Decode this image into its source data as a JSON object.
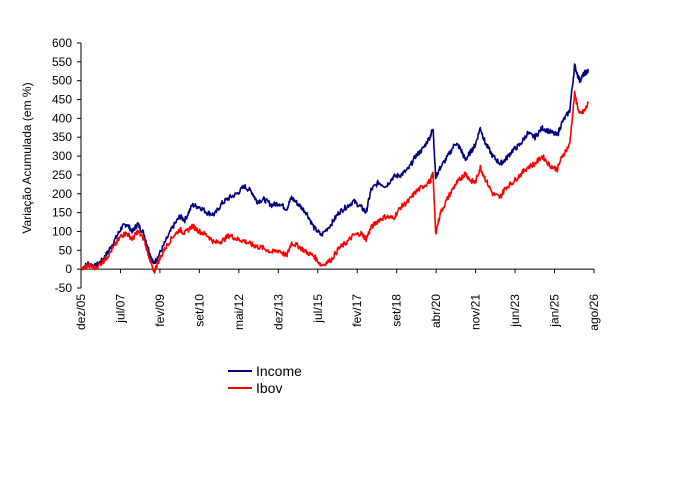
{
  "chart_data": {
    "type": "line",
    "title": "",
    "xlabel": "",
    "ylabel": "Variação Acumulada (em %)",
    "ylim": [
      -50,
      600
    ],
    "yticks": [
      -50,
      0,
      50,
      100,
      150,
      200,
      250,
      300,
      350,
      400,
      450,
      500,
      550,
      600
    ],
    "xlim": [
      2005.92,
      2026.58
    ],
    "xtick_labels": [
      "dez/05",
      "jul/07",
      "fev/09",
      "set/10",
      "mai/12",
      "dez/13",
      "jul/15",
      "fev/17",
      "set/18",
      "abr/20",
      "nov/21",
      "jun/23",
      "jan/25",
      "ago/26"
    ],
    "grid": false,
    "legend_position": "bottom-center",
    "series": [
      {
        "name": "Income",
        "color": "#00007f",
        "points": [
          [
            2005.92,
            0
          ],
          [
            2006.2,
            15
          ],
          [
            2006.5,
            8
          ],
          [
            2006.8,
            25
          ],
          [
            2007.0,
            45
          ],
          [
            2007.3,
            80
          ],
          [
            2007.55,
            110
          ],
          [
            2007.75,
            120
          ],
          [
            2008.0,
            100
          ],
          [
            2008.2,
            120
          ],
          [
            2008.45,
            95
          ],
          [
            2008.7,
            40
          ],
          [
            2008.85,
            15
          ],
          [
            2009.0,
            30
          ],
          [
            2009.3,
            70
          ],
          [
            2009.6,
            110
          ],
          [
            2009.9,
            140
          ],
          [
            2010.1,
            130
          ],
          [
            2010.4,
            170
          ],
          [
            2010.7,
            165
          ],
          [
            2011.0,
            150
          ],
          [
            2011.3,
            145
          ],
          [
            2011.6,
            175
          ],
          [
            2011.9,
            190
          ],
          [
            2012.2,
            200
          ],
          [
            2012.5,
            220
          ],
          [
            2012.8,
            205
          ],
          [
            2013.0,
            180
          ],
          [
            2013.3,
            185
          ],
          [
            2013.6,
            170
          ],
          [
            2013.9,
            175
          ],
          [
            2014.2,
            160
          ],
          [
            2014.4,
            190
          ],
          [
            2014.7,
            170
          ],
          [
            2015.0,
            150
          ],
          [
            2015.3,
            110
          ],
          [
            2015.6,
            90
          ],
          [
            2016.0,
            120
          ],
          [
            2016.3,
            150
          ],
          [
            2016.6,
            165
          ],
          [
            2016.9,
            180
          ],
          [
            2017.2,
            165
          ],
          [
            2017.4,
            150
          ],
          [
            2017.6,
            210
          ],
          [
            2017.9,
            230
          ],
          [
            2018.2,
            220
          ],
          [
            2018.5,
            245
          ],
          [
            2018.8,
            250
          ],
          [
            2019.1,
            265
          ],
          [
            2019.4,
            300
          ],
          [
            2019.7,
            320
          ],
          [
            2020.0,
            355
          ],
          [
            2020.1,
            375
          ],
          [
            2020.2,
            245
          ],
          [
            2020.4,
            270
          ],
          [
            2020.7,
            300
          ],
          [
            2021.0,
            335
          ],
          [
            2021.2,
            320
          ],
          [
            2021.4,
            290
          ],
          [
            2021.6,
            310
          ],
          [
            2021.8,
            330
          ],
          [
            2022.0,
            375
          ],
          [
            2022.2,
            335
          ],
          [
            2022.5,
            300
          ],
          [
            2022.8,
            280
          ],
          [
            2023.0,
            290
          ],
          [
            2023.3,
            315
          ],
          [
            2023.6,
            330
          ],
          [
            2023.9,
            360
          ],
          [
            2024.2,
            350
          ],
          [
            2024.5,
            375
          ],
          [
            2024.8,
            365
          ],
          [
            2025.1,
            355
          ],
          [
            2025.3,
            390
          ],
          [
            2025.6,
            420
          ],
          [
            2025.8,
            540
          ],
          [
            2026.0,
            500
          ],
          [
            2026.2,
            520
          ],
          [
            2026.35,
            525
          ]
        ]
      },
      {
        "name": "Ibov",
        "color": "#ff0000",
        "points": [
          [
            2005.92,
            0
          ],
          [
            2006.2,
            10
          ],
          [
            2006.5,
            3
          ],
          [
            2006.8,
            20
          ],
          [
            2007.0,
            35
          ],
          [
            2007.3,
            65
          ],
          [
            2007.55,
            90
          ],
          [
            2007.75,
            95
          ],
          [
            2008.0,
            80
          ],
          [
            2008.2,
            100
          ],
          [
            2008.45,
            80
          ],
          [
            2008.7,
            25
          ],
          [
            2008.85,
            -10
          ],
          [
            2009.0,
            15
          ],
          [
            2009.3,
            55
          ],
          [
            2009.6,
            85
          ],
          [
            2009.9,
            105
          ],
          [
            2010.1,
            95
          ],
          [
            2010.4,
            115
          ],
          [
            2010.7,
            100
          ],
          [
            2011.0,
            90
          ],
          [
            2011.3,
            70
          ],
          [
            2011.6,
            75
          ],
          [
            2011.9,
            90
          ],
          [
            2012.2,
            80
          ],
          [
            2012.5,
            75
          ],
          [
            2012.8,
            65
          ],
          [
            2013.0,
            60
          ],
          [
            2013.3,
            55
          ],
          [
            2013.6,
            45
          ],
          [
            2013.9,
            50
          ],
          [
            2014.2,
            35
          ],
          [
            2014.4,
            70
          ],
          [
            2014.7,
            60
          ],
          [
            2015.0,
            45
          ],
          [
            2015.3,
            35
          ],
          [
            2015.6,
            10
          ],
          [
            2016.0,
            25
          ],
          [
            2016.3,
            55
          ],
          [
            2016.6,
            70
          ],
          [
            2016.9,
            90
          ],
          [
            2017.2,
            95
          ],
          [
            2017.4,
            80
          ],
          [
            2017.6,
            110
          ],
          [
            2017.9,
            130
          ],
          [
            2018.2,
            140
          ],
          [
            2018.5,
            135
          ],
          [
            2018.8,
            165
          ],
          [
            2019.1,
            180
          ],
          [
            2019.4,
            205
          ],
          [
            2019.7,
            220
          ],
          [
            2020.0,
            235
          ],
          [
            2020.1,
            255
          ],
          [
            2020.2,
            95
          ],
          [
            2020.4,
            150
          ],
          [
            2020.7,
            190
          ],
          [
            2021.0,
            225
          ],
          [
            2021.2,
            240
          ],
          [
            2021.4,
            255
          ],
          [
            2021.6,
            235
          ],
          [
            2021.8,
            230
          ],
          [
            2022.0,
            270
          ],
          [
            2022.2,
            240
          ],
          [
            2022.5,
            200
          ],
          [
            2022.8,
            190
          ],
          [
            2023.0,
            215
          ],
          [
            2023.3,
            230
          ],
          [
            2023.6,
            250
          ],
          [
            2023.9,
            270
          ],
          [
            2024.2,
            280
          ],
          [
            2024.5,
            300
          ],
          [
            2024.8,
            275
          ],
          [
            2025.1,
            265
          ],
          [
            2025.3,
            300
          ],
          [
            2025.6,
            330
          ],
          [
            2025.8,
            465
          ],
          [
            2026.0,
            410
          ],
          [
            2026.2,
            420
          ],
          [
            2026.35,
            440
          ]
        ]
      }
    ]
  }
}
